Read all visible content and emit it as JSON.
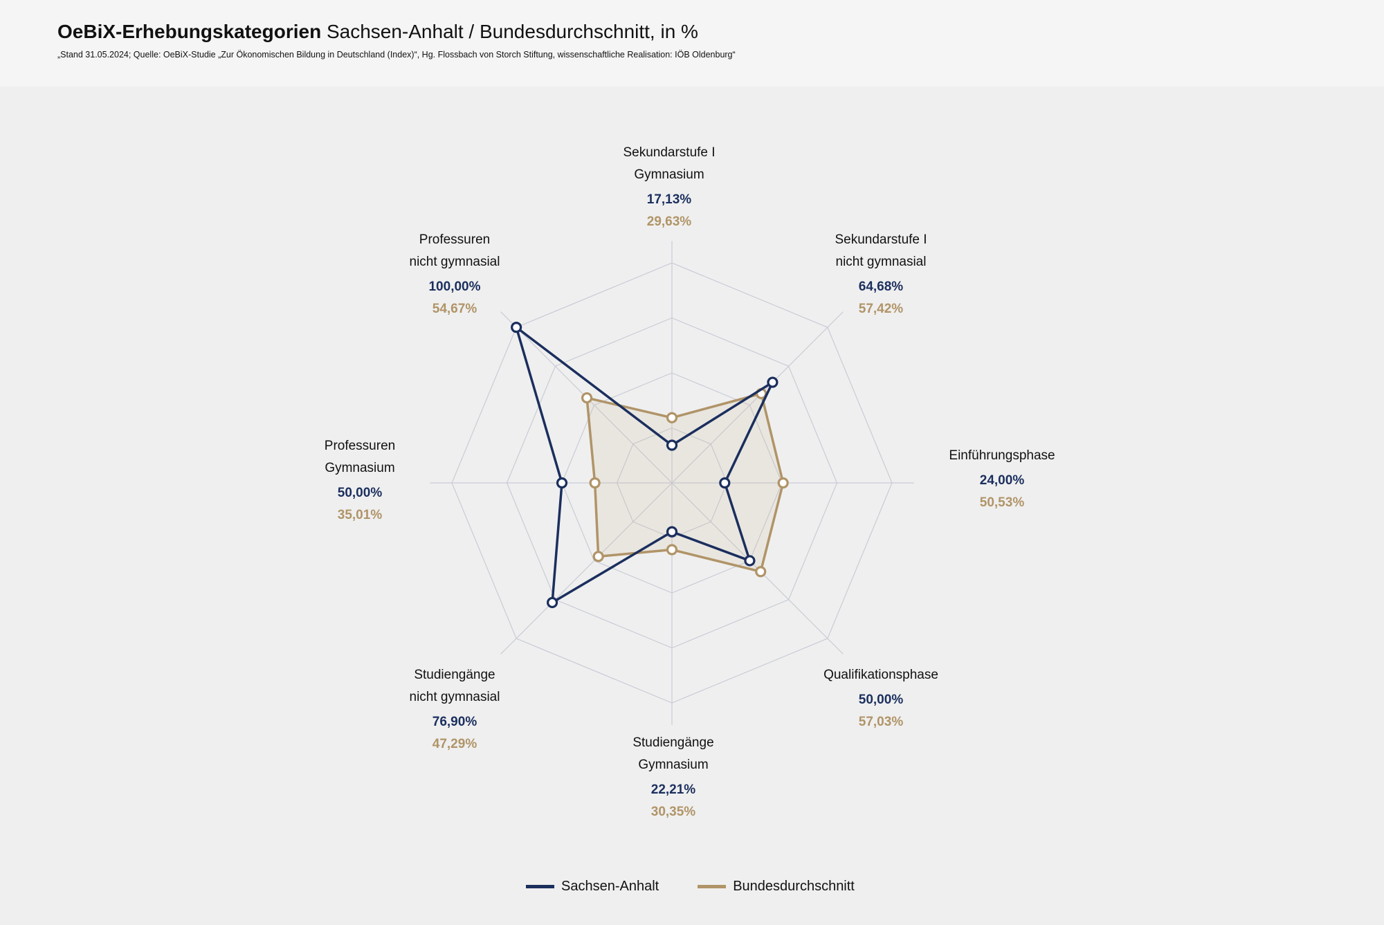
{
  "header": {
    "title_bold": "OeBiX-Erhebungskategorien",
    "title_rest": "Sachsen-Anhalt / Bundesdurchschnitt, in %",
    "subtitle": "„Stand 31.05.2024; Quelle: OeBiX-Studie „Zur Ökonomischen Bildung in Deutschland (Index)“, Hg. Flossbach von Storch Stiftung, wissenschaftliche Realisation: IÖB Oldenburg“"
  },
  "chart_data": {
    "type": "radar",
    "title": "OeBiX-Erhebungskategorien Sachsen-Anhalt / Bundesdurchschnitt, in %",
    "range": [
      0,
      100
    ],
    "grid": true,
    "grid_rings": 4,
    "legend_position": "bottom",
    "categories": [
      {
        "line1": "Sekundarstufe I",
        "line2": "Gymnasium",
        "v1": "17,13%",
        "v2": "29,63%"
      },
      {
        "line1": "Sekundarstufe I",
        "line2": "nicht gymnasial",
        "v1": "64,68%",
        "v2": "57,42%"
      },
      {
        "line1": "Einführungsphase",
        "line2": "",
        "v1": "24,00%",
        "v2": "50,53%"
      },
      {
        "line1": "Qualifikationsphase",
        "line2": "",
        "v1": "50,00%",
        "v2": "57,03%"
      },
      {
        "line1": "Studiengänge",
        "line2": "Gymnasium",
        "v1": "22,21%",
        "v2": "30,35%"
      },
      {
        "line1": "Studiengänge",
        "line2": "nicht gymnasial",
        "v1": "76,90%",
        "v2": "47,29%"
      },
      {
        "line1": "Professuren",
        "line2": "Gymnasium",
        "v1": "50,00%",
        "v2": "35,01%"
      },
      {
        "line1": "Professuren",
        "line2": "nicht gymnasial",
        "v1": "100,00%",
        "v2": "54,67%"
      }
    ],
    "series": [
      {
        "name": "Sachsen-Anhalt",
        "color": "#1b2f5e",
        "values": [
          17.13,
          64.68,
          24.0,
          50.0,
          22.21,
          76.9,
          50.0,
          100.0
        ]
      },
      {
        "name": "Bundesdurchschnitt",
        "color": "#b09468",
        "values": [
          29.63,
          57.42,
          50.53,
          57.03,
          30.35,
          47.29,
          35.01,
          54.67
        ]
      }
    ]
  }
}
